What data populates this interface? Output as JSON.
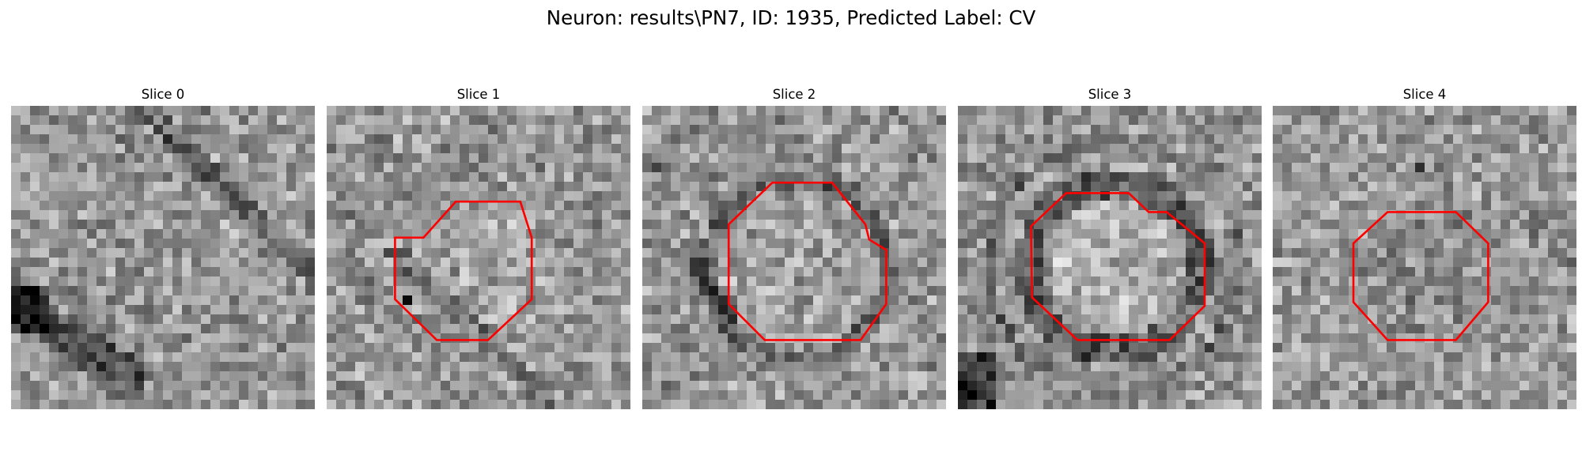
{
  "figure": {
    "suptitle": "Neuron: results\\PN7, ID: 1935, Predicted Label: CV",
    "roi_color": "#ff0000",
    "colormap": "gray"
  },
  "slices": [
    {
      "title": "Slice 0",
      "has_roi": false
    },
    {
      "title": "Slice 1",
      "has_roi": true
    },
    {
      "title": "Slice 2",
      "has_roi": true
    },
    {
      "title": "Slice 3",
      "has_roi": true
    },
    {
      "title": "Slice 4",
      "has_roi": true
    }
  ]
}
